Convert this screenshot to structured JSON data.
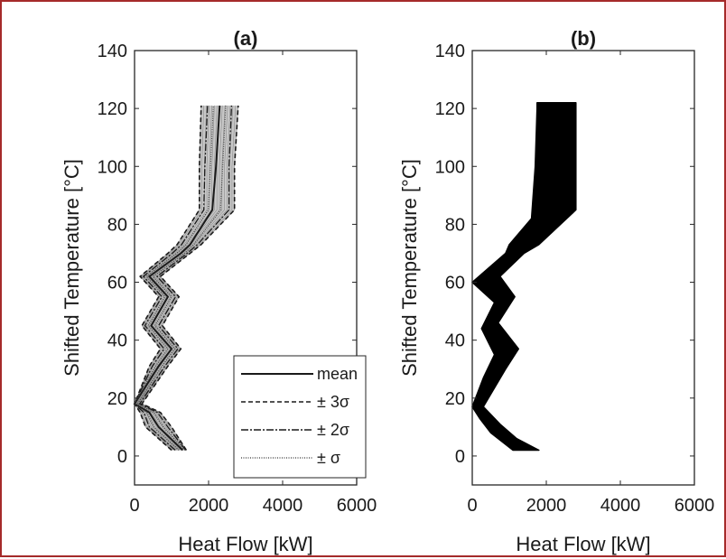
{
  "chart_data": [
    {
      "type": "line",
      "title": "(a)",
      "xlabel": "Heat Flow [kW]",
      "ylabel": "Shifted Temperature [°C]",
      "xlim": [
        0,
        6000
      ],
      "ylim": [
        -10,
        140
      ],
      "xticks": [
        "0",
        "2000",
        "4000",
        "6000"
      ],
      "yticks": [
        "0",
        "20",
        "40",
        "60",
        "80",
        "100",
        "120",
        "140"
      ],
      "legend": [
        "mean",
        "± 3σ",
        "± 2σ",
        "± σ"
      ],
      "legend_position": "bottom-right",
      "band_color": "#c8c8c8",
      "line_color": "#1a1a1a",
      "series": [
        {
          "name": "mean",
          "x": [
            1300,
            650,
            400,
            0,
            650,
            1000,
            450,
            900,
            400,
            1250,
            1500,
            2100,
            2200,
            2300
          ],
          "y": [
            2,
            10,
            15,
            18,
            31,
            37,
            45,
            55,
            62,
            70,
            73,
            85,
            100,
            121
          ]
        },
        {
          "name": "± 3σ",
          "x_lower": [
            1000,
            300,
            150,
            0,
            400,
            700,
            200,
            650,
            150,
            900,
            1150,
            1750,
            1750,
            1800
          ],
          "x_upper": [
            1400,
            1000,
            700,
            200,
            900,
            1250,
            750,
            1200,
            700,
            1500,
            1800,
            2700,
            2700,
            2800
          ],
          "y": [
            2,
            10,
            15,
            18,
            31,
            37,
            45,
            55,
            62,
            70,
            73,
            85,
            100,
            121
          ]
        },
        {
          "name": "± 2σ",
          "x_lower": [
            1100,
            400,
            250,
            0,
            480,
            800,
            280,
            740,
            240,
            1020,
            1270,
            1870,
            1900,
            1970
          ],
          "x_upper": [
            1380,
            900,
            620,
            140,
            820,
            1170,
            650,
            1110,
            610,
            1420,
            1700,
            2550,
            2550,
            2620
          ],
          "y": [
            2,
            10,
            15,
            18,
            31,
            37,
            45,
            55,
            62,
            70,
            73,
            85,
            100,
            121
          ]
        },
        {
          "name": "± σ",
          "x_lower": [
            1200,
            520,
            330,
            0,
            570,
            900,
            370,
            820,
            320,
            1140,
            1390,
            1990,
            2050,
            2130
          ],
          "x_upper": [
            1360,
            780,
            520,
            80,
            740,
            1090,
            550,
            1000,
            500,
            1350,
            1600,
            2320,
            2380,
            2460
          ],
          "y": [
            2,
            10,
            15,
            18,
            31,
            37,
            45,
            55,
            62,
            70,
            73,
            85,
            100,
            121
          ]
        }
      ]
    },
    {
      "type": "area",
      "title": "(b)",
      "xlabel": "Heat Flow [kW]",
      "ylabel": "Shifted Temperature [°C]",
      "xlim": [
        0,
        6000
      ],
      "ylim": [
        -10,
        140
      ],
      "xticks": [
        "0",
        "2000",
        "4000",
        "6000"
      ],
      "yticks": [
        "0",
        "20",
        "40",
        "60",
        "80",
        "100",
        "120",
        "140"
      ],
      "fill_color": "#000000",
      "envelope": {
        "left_x": [
          1100,
          500,
          200,
          0,
          300,
          600,
          250,
          600,
          0,
          900,
          1000,
          1600,
          1700,
          1750,
          1750
        ],
        "left_y": [
          2,
          8,
          13,
          17,
          27,
          35,
          44,
          53,
          60,
          70,
          73,
          82,
          100,
          120,
          122
        ],
        "right_x": [
          1800,
          1200,
          750,
          300,
          900,
          1250,
          700,
          1150,
          750,
          1400,
          1800,
          2800,
          2800,
          2800,
          2800
        ],
        "right_y": [
          2,
          6,
          11,
          17,
          30,
          37,
          46,
          55,
          62,
          70,
          73,
          85,
          100,
          120,
          122
        ]
      }
    }
  ]
}
